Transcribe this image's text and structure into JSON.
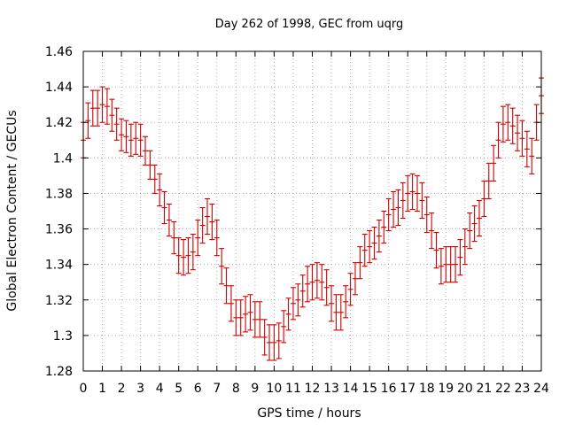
{
  "chart_data": {
    "type": "scatter",
    "title": "Day 262 of 1998, GEC from uqrg",
    "xlabel": "GPS time / hours",
    "ylabel": "Global Electron Content / GECUs",
    "xlim": [
      0,
      24
    ],
    "ylim": [
      1.28,
      1.46
    ],
    "xticks": [
      0,
      1,
      2,
      3,
      4,
      5,
      6,
      7,
      8,
      9,
      10,
      11,
      12,
      13,
      14,
      15,
      16,
      17,
      18,
      19,
      20,
      21,
      22,
      23,
      24
    ],
    "xtick_labels": [
      "0",
      "1",
      "2",
      "3",
      "4",
      "5",
      "6",
      "7",
      "8",
      "9",
      "10",
      "11",
      "12",
      "13",
      "14",
      "15",
      "16",
      "17",
      "18",
      "19",
      "20",
      "21",
      "22",
      "23",
      "24"
    ],
    "yticks": [
      1.28,
      1.3,
      1.32,
      1.34,
      1.36,
      1.38,
      1.4,
      1.42,
      1.44,
      1.46
    ],
    "ytick_labels": [
      "1.28",
      "1.3",
      "1.32",
      "1.34",
      "1.36",
      "1.38",
      "1.4",
      "1.42",
      "1.44",
      "1.46"
    ],
    "grid": true,
    "error_bar_color": "#cc0000",
    "grid_color": "#a0a0a0",
    "series": [
      {
        "name": "GEC",
        "x": [
          0.0,
          0.25,
          0.5,
          0.75,
          1.0,
          1.25,
          1.5,
          1.75,
          2.0,
          2.25,
          2.5,
          2.75,
          3.0,
          3.25,
          3.5,
          3.75,
          4.0,
          4.25,
          4.5,
          4.75,
          5.0,
          5.25,
          5.5,
          5.75,
          6.0,
          6.25,
          6.5,
          6.75,
          7.0,
          7.25,
          7.5,
          7.75,
          8.0,
          8.25,
          8.5,
          8.75,
          9.0,
          9.25,
          9.5,
          9.75,
          10.0,
          10.25,
          10.5,
          10.75,
          11.0,
          11.25,
          11.5,
          11.75,
          12.0,
          12.25,
          12.5,
          12.75,
          13.0,
          13.25,
          13.5,
          13.75,
          14.0,
          14.25,
          14.5,
          14.75,
          15.0,
          15.25,
          15.5,
          15.75,
          16.0,
          16.25,
          16.5,
          16.75,
          17.0,
          17.25,
          17.5,
          17.75,
          18.0,
          18.25,
          18.5,
          18.75,
          19.0,
          19.25,
          19.5,
          19.75,
          20.0,
          20.25,
          20.5,
          20.75,
          21.0,
          21.25,
          21.5,
          21.75,
          22.0,
          22.25,
          22.5,
          22.75,
          23.0,
          23.25,
          23.5,
          23.75,
          24.0
        ],
        "y": [
          1.41,
          1.421,
          1.428,
          1.428,
          1.43,
          1.429,
          1.424,
          1.419,
          1.413,
          1.412,
          1.41,
          1.411,
          1.41,
          1.404,
          1.396,
          1.388,
          1.382,
          1.372,
          1.365,
          1.355,
          1.345,
          1.344,
          1.345,
          1.347,
          1.355,
          1.362,
          1.367,
          1.364,
          1.355,
          1.339,
          1.328,
          1.318,
          1.31,
          1.31,
          1.312,
          1.313,
          1.309,
          1.309,
          1.299,
          1.296,
          1.296,
          1.297,
          1.305,
          1.312,
          1.318,
          1.32,
          1.325,
          1.329,
          1.33,
          1.331,
          1.33,
          1.327,
          1.318,
          1.313,
          1.313,
          1.319,
          1.326,
          1.332,
          1.341,
          1.348,
          1.35,
          1.352,
          1.356,
          1.361,
          1.368,
          1.371,
          1.372,
          1.376,
          1.38,
          1.381,
          1.38,
          1.376,
          1.368,
          1.359,
          1.348,
          1.339,
          1.34,
          1.34,
          1.34,
          1.344,
          1.35,
          1.359,
          1.363,
          1.366,
          1.377,
          1.387,
          1.397,
          1.41,
          1.419,
          1.42,
          1.418,
          1.414,
          1.411,
          1.405,
          1.401,
          1.42,
          1.435
        ],
        "err": [
          0.01,
          0.01,
          0.01,
          0.01,
          0.01,
          0.01,
          0.009,
          0.009,
          0.009,
          0.009,
          0.009,
          0.009,
          0.009,
          0.008,
          0.008,
          0.008,
          0.009,
          0.009,
          0.009,
          0.009,
          0.01,
          0.01,
          0.01,
          0.01,
          0.01,
          0.01,
          0.01,
          0.01,
          0.01,
          0.01,
          0.01,
          0.01,
          0.01,
          0.01,
          0.01,
          0.01,
          0.01,
          0.01,
          0.01,
          0.01,
          0.01,
          0.01,
          0.009,
          0.009,
          0.009,
          0.009,
          0.009,
          0.01,
          0.01,
          0.01,
          0.01,
          0.01,
          0.01,
          0.01,
          0.01,
          0.009,
          0.009,
          0.009,
          0.009,
          0.009,
          0.009,
          0.009,
          0.009,
          0.009,
          0.009,
          0.01,
          0.01,
          0.01,
          0.01,
          0.01,
          0.01,
          0.01,
          0.01,
          0.01,
          0.01,
          0.01,
          0.01,
          0.01,
          0.01,
          0.01,
          0.01,
          0.01,
          0.01,
          0.01,
          0.01,
          0.01,
          0.01,
          0.01,
          0.01,
          0.01,
          0.01,
          0.01,
          0.01,
          0.01,
          0.01,
          0.01,
          0.01
        ]
      }
    ]
  }
}
